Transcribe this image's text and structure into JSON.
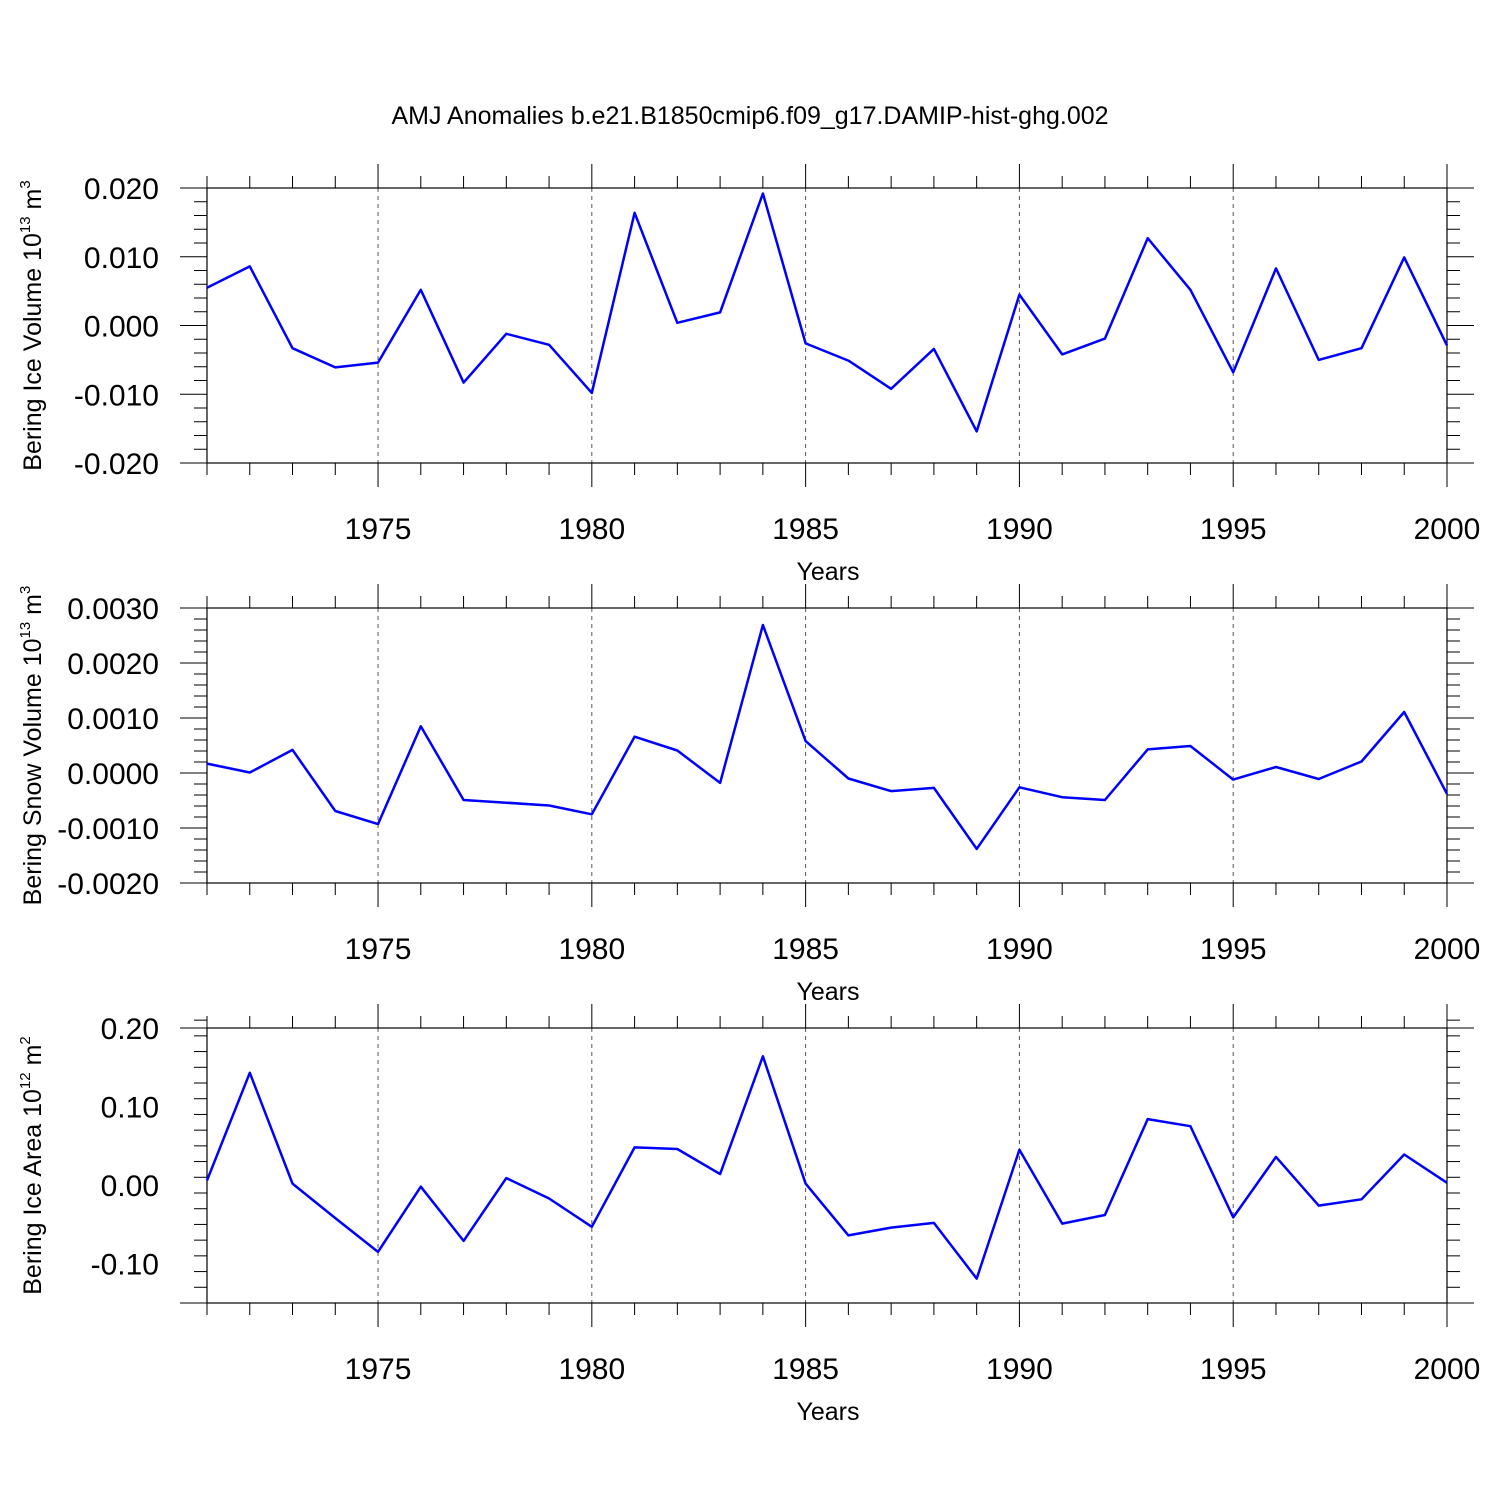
{
  "title": "AMJ Anomalies b.e21.B1850cmip6.f09_g17.DAMIP-hist-ghg.002",
  "chart_data": [
    {
      "type": "line",
      "ylabel": "Bering Ice Volume 10",
      "ylabel_exp": "13",
      "ylabel_unit": "m",
      "ylabel_unit_exp": "3",
      "xlabel": "Years",
      "xlim": [
        1971,
        2000
      ],
      "ylim": [
        -0.02,
        0.02
      ],
      "yticks": [
        -0.02,
        -0.01,
        0.0,
        0.01,
        0.02
      ],
      "ytick_labels": [
        "-0.020",
        "-0.010",
        "0.000",
        "0.010",
        "0.020"
      ],
      "xticks": [
        1975,
        1980,
        1985,
        1990,
        1995,
        2000
      ],
      "xtick_labels": [
        "1975",
        "1980",
        "1985",
        "1990",
        "1995",
        "2000"
      ],
      "line_color": "#0000ff",
      "x": [
        1971,
        1972,
        1973,
        1974,
        1975,
        1976,
        1977,
        1978,
        1979,
        1980,
        1981,
        1982,
        1983,
        1984,
        1985,
        1986,
        1987,
        1988,
        1989,
        1990,
        1991,
        1992,
        1993,
        1994,
        1995,
        1996,
        1997,
        1998,
        1999,
        2000
      ],
      "values": [
        0.0055,
        0.0086,
        -0.0033,
        -0.0061,
        -0.0054,
        0.0052,
        -0.0083,
        -0.0012,
        -0.0028,
        -0.0098,
        0.0164,
        0.0004,
        0.0019,
        0.0192,
        -0.0026,
        -0.0051,
        -0.0092,
        -0.0034,
        -0.0154,
        0.0045,
        -0.0042,
        -0.0019,
        0.0127,
        0.0052,
        -0.0068,
        0.0083,
        -0.005,
        -0.0033,
        0.0099,
        -0.0029
      ]
    },
    {
      "type": "line",
      "ylabel": "Bering Snow Volume 10",
      "ylabel_exp": "13",
      "ylabel_unit": "m",
      "ylabel_unit_exp": "3",
      "xlabel": "Years",
      "xlim": [
        1971,
        2000
      ],
      "ylim": [
        -0.002,
        0.003
      ],
      "yticks": [
        -0.002,
        -0.001,
        0.0,
        0.001,
        0.002,
        0.003
      ],
      "ytick_labels": [
        "-0.0020",
        "-0.0010",
        "0.0000",
        "0.0010",
        "0.0020",
        "0.0030"
      ],
      "xticks": [
        1975,
        1980,
        1985,
        1990,
        1995,
        2000
      ],
      "xtick_labels": [
        "1975",
        "1980",
        "1985",
        "1990",
        "1995",
        "2000"
      ],
      "line_color": "#0000ff",
      "x": [
        1971,
        1972,
        1973,
        1974,
        1975,
        1976,
        1977,
        1978,
        1979,
        1980,
        1981,
        1982,
        1983,
        1984,
        1985,
        1986,
        1987,
        1988,
        1989,
        1990,
        1991,
        1992,
        1993,
        1994,
        1995,
        1996,
        1997,
        1998,
        1999,
        2000
      ],
      "values": [
        0.00017,
        1e-05,
        0.00042,
        -0.00069,
        -0.00093,
        0.00085,
        -0.00049,
        -0.00054,
        -0.00059,
        -0.00075,
        0.00066,
        0.00041,
        -0.00018,
        0.00269,
        0.00058,
        -0.0001,
        -0.00033,
        -0.00027,
        -0.00138,
        -0.00026,
        -0.00044,
        -0.00049,
        0.00043,
        0.00049,
        -0.00012,
        0.00011,
        -0.00011,
        0.00021,
        0.00111,
        -0.00038
      ]
    },
    {
      "type": "line",
      "ylabel": "Bering Ice Area 10",
      "ylabel_exp": "12",
      "ylabel_unit": "m",
      "ylabel_unit_exp": "2",
      "xlabel": "Years",
      "xlim": [
        1971,
        2000
      ],
      "ylim": [
        -0.15,
        0.2
      ],
      "yticks": [
        -0.1,
        0.0,
        0.1,
        0.2
      ],
      "ytick_labels": [
        "-0.10",
        "0.00",
        "0.10",
        "0.20"
      ],
      "xticks": [
        1975,
        1980,
        1985,
        1990,
        1995,
        2000
      ],
      "xtick_labels": [
        "1975",
        "1980",
        "1985",
        "1990",
        "1995",
        "2000"
      ],
      "line_color": "#0000ff",
      "x": [
        1971,
        1972,
        1973,
        1974,
        1975,
        1976,
        1977,
        1978,
        1979,
        1980,
        1981,
        1982,
        1983,
        1984,
        1985,
        1986,
        1987,
        1988,
        1989,
        1990,
        1991,
        1992,
        1993,
        1994,
        1995,
        1996,
        1997,
        1998,
        1999,
        2000
      ],
      "values": [
        0.006,
        0.143,
        0.002,
        -0.042,
        -0.085,
        -0.002,
        -0.071,
        0.009,
        -0.017,
        -0.053,
        0.048,
        0.046,
        0.014,
        0.164,
        0.002,
        -0.064,
        -0.054,
        -0.048,
        -0.119,
        0.045,
        -0.049,
        -0.038,
        0.084,
        0.075,
        -0.041,
        0.036,
        -0.026,
        -0.018,
        0.039,
        0.003
      ]
    }
  ]
}
